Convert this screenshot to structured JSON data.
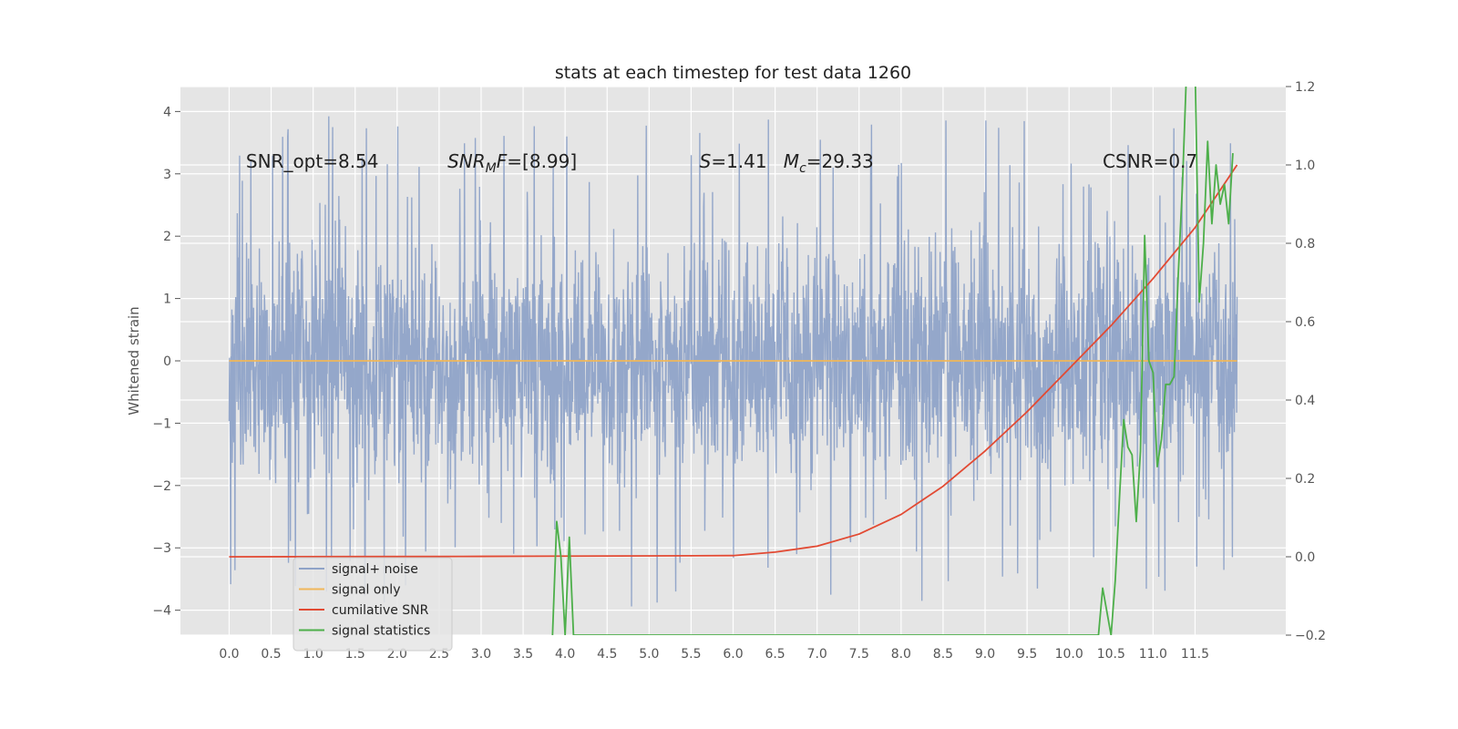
{
  "chart_data": {
    "type": "line",
    "title": "stats at each timestep for test data 1260",
    "ylabel": "Whitened strain",
    "xlabel": "",
    "xlim": [
      -0.58,
      12.58
    ],
    "ylim": [
      -4.4,
      4.4
    ],
    "y2lim": [
      -0.2,
      1.2
    ],
    "grid": true,
    "legend_position": "lower-left",
    "x_ticks": [
      "0.0",
      "0.5",
      "1.0",
      "1.5",
      "2.0",
      "2.5",
      "3.0",
      "3.5",
      "4.0",
      "4.5",
      "5.0",
      "5.5",
      "6.0",
      "6.5",
      "7.0",
      "7.5",
      "8.0",
      "8.5",
      "9.0",
      "9.5",
      "10.0",
      "10.5",
      "11.0",
      "11.5"
    ],
    "y_ticks": [
      "4",
      "3",
      "2",
      "1",
      "0",
      "−1",
      "−2",
      "−3",
      "−4"
    ],
    "y2_ticks": [
      "1.2",
      "1.0",
      "0.8",
      "0.6",
      "0.4",
      "0.2",
      "0.0",
      "−0.2"
    ],
    "annotations": [
      {
        "text": "SNR_opt=8.54",
        "x": 0.2,
        "y": 3.1
      },
      {
        "text": "SNR",
        "sub": "M",
        "suffix": "F=[8.99]",
        "italic": true,
        "x": 2.6,
        "y": 3.1
      },
      {
        "text": "S",
        "suffix": "=1.41",
        "italic": true,
        "x": 5.6,
        "y": 3.1
      },
      {
        "text": "M",
        "sub": "c",
        "suffix": "=29.33",
        "italic": true,
        "x": 6.6,
        "y": 3.1
      },
      {
        "text": "CSNR=0.7",
        "x": 10.4,
        "y": 3.1
      }
    ],
    "series": [
      {
        "name": "signal+ noise",
        "axis": "left",
        "color": "#8fa3c8",
        "envelope": {
          "x_start": 0.0,
          "x_end": 12.0,
          "typical_range": [
            -2.0,
            2.0
          ],
          "peak_range": [
            -4.1,
            4.0
          ]
        }
      },
      {
        "name": "signal only",
        "axis": "left",
        "color": "#f0b75a",
        "x": [
          0.0,
          12.0
        ],
        "y": [
          0.0,
          0.0
        ]
      },
      {
        "name": "cumilative SNR",
        "axis": "right",
        "color": "#e24a33",
        "x": [
          0.0,
          3.0,
          6.0,
          6.5,
          7.0,
          7.5,
          8.0,
          8.5,
          9.0,
          9.5,
          10.0,
          10.5,
          11.0,
          11.5,
          12.0
        ],
        "y": [
          0.0,
          0.001,
          0.003,
          0.012,
          0.027,
          0.058,
          0.108,
          0.18,
          0.27,
          0.37,
          0.48,
          0.59,
          0.71,
          0.84,
          1.0
        ]
      },
      {
        "name": "signal statistics",
        "axis": "right",
        "color": "#4daf4a",
        "x": [
          3.85,
          3.9,
          3.95,
          4.0,
          4.05,
          4.1,
          10.35,
          10.4,
          10.5,
          10.55,
          10.6,
          10.65,
          10.7,
          10.75,
          10.8,
          10.85,
          10.9,
          10.95,
          11.0,
          11.05,
          11.1,
          11.15,
          11.2,
          11.25,
          11.3,
          11.35,
          11.4,
          11.5,
          11.55,
          11.6,
          11.65,
          11.7,
          11.75,
          11.8,
          11.85,
          11.9,
          11.95
        ],
        "y": [
          -0.2,
          0.09,
          0.0,
          -0.2,
          0.05,
          -0.2,
          -0.2,
          -0.08,
          -0.2,
          -0.06,
          0.15,
          0.35,
          0.28,
          0.26,
          0.09,
          0.27,
          0.82,
          0.5,
          0.47,
          0.23,
          0.3,
          0.44,
          0.44,
          0.46,
          0.72,
          0.95,
          1.25,
          1.25,
          0.65,
          0.8,
          1.06,
          0.85,
          1.0,
          0.9,
          0.95,
          0.85,
          1.03
        ]
      }
    ]
  }
}
